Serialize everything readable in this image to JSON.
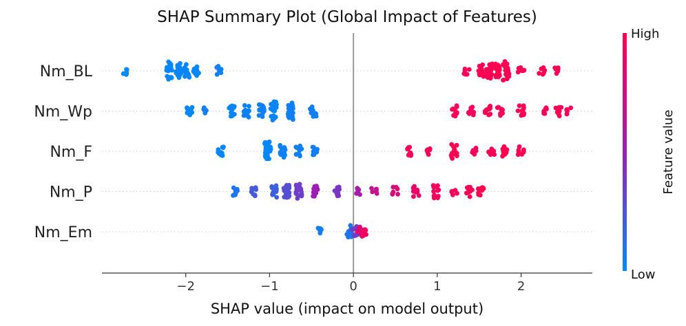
{
  "chart_data": {
    "type": "scatter",
    "title": "SHAP Summary Plot (Global Impact of Features)",
    "xlabel": "SHAP value (impact on model output)",
    "xlim": [
      -3.0,
      2.85
    ],
    "xticks": [
      -2,
      -1,
      0,
      1,
      2
    ],
    "xtick_labels": [
      "−2",
      "−1",
      "0",
      "1",
      "2"
    ],
    "features": [
      "Nm_BL",
      "Nm_Wp",
      "Nm_F",
      "Nm_P",
      "Nm_Em"
    ],
    "series": [
      {
        "name": "Nm_BL",
        "clusters": [
          {
            "x": -2.72,
            "n": 2,
            "fv": 0.0
          },
          {
            "x": -2.2,
            "n": 8,
            "fv": 0.02
          },
          {
            "x": -2.08,
            "n": 6,
            "fv": 0.03
          },
          {
            "x": -1.98,
            "n": 5,
            "fv": 0.03
          },
          {
            "x": -1.88,
            "n": 4,
            "fv": 0.02
          },
          {
            "x": -1.6,
            "n": 3,
            "fv": 0.05
          },
          {
            "x": 1.35,
            "n": 2,
            "fv": 0.97
          },
          {
            "x": 1.52,
            "n": 5,
            "fv": 1.0
          },
          {
            "x": 1.62,
            "n": 6,
            "fv": 0.98
          },
          {
            "x": 1.72,
            "n": 6,
            "fv": 1.0
          },
          {
            "x": 1.82,
            "n": 8,
            "fv": 0.99
          },
          {
            "x": 2.0,
            "n": 2,
            "fv": 0.98
          },
          {
            "x": 2.25,
            "n": 2,
            "fv": 1.0
          },
          {
            "x": 2.43,
            "n": 2,
            "fv": 0.97
          }
        ]
      },
      {
        "name": "Nm_Wp",
        "clusters": [
          {
            "x": -1.95,
            "n": 3,
            "fv": 0.02
          },
          {
            "x": -1.75,
            "n": 2,
            "fv": 0.05
          },
          {
            "x": -1.45,
            "n": 4,
            "fv": 0.03
          },
          {
            "x": -1.28,
            "n": 5,
            "fv": 0.04
          },
          {
            "x": -1.1,
            "n": 5,
            "fv": 0.05
          },
          {
            "x": -0.95,
            "n": 8,
            "fv": 0.03
          },
          {
            "x": -0.75,
            "n": 7,
            "fv": 0.05
          },
          {
            "x": -0.48,
            "n": 4,
            "fv": 0.06
          },
          {
            "x": 1.2,
            "n": 4,
            "fv": 0.97
          },
          {
            "x": 1.4,
            "n": 3,
            "fv": 0.95
          },
          {
            "x": 1.6,
            "n": 4,
            "fv": 0.99
          },
          {
            "x": 1.75,
            "n": 3,
            "fv": 0.97
          },
          {
            "x": 2.0,
            "n": 4,
            "fv": 1.0
          },
          {
            "x": 2.3,
            "n": 2,
            "fv": 0.98
          },
          {
            "x": 2.45,
            "n": 4,
            "fv": 1.0
          },
          {
            "x": 2.58,
            "n": 2,
            "fv": 0.98
          }
        ]
      },
      {
        "name": "Nm_F",
        "clusters": [
          {
            "x": -1.58,
            "n": 4,
            "fv": 0.03
          },
          {
            "x": -1.02,
            "n": 8,
            "fv": 0.02
          },
          {
            "x": -0.85,
            "n": 5,
            "fv": 0.04
          },
          {
            "x": -0.65,
            "n": 4,
            "fv": 0.05
          },
          {
            "x": -0.45,
            "n": 3,
            "fv": 0.06
          },
          {
            "x": 0.65,
            "n": 3,
            "fv": 0.96
          },
          {
            "x": 0.88,
            "n": 2,
            "fv": 0.98
          },
          {
            "x": 1.2,
            "n": 6,
            "fv": 1.0
          },
          {
            "x": 1.45,
            "n": 2,
            "fv": 0.97
          },
          {
            "x": 1.65,
            "n": 3,
            "fv": 0.98
          },
          {
            "x": 1.8,
            "n": 4,
            "fv": 1.0
          },
          {
            "x": 2.0,
            "n": 3,
            "fv": 0.99
          }
        ]
      },
      {
        "name": "Nm_P",
        "clusters": [
          {
            "x": -1.4,
            "n": 3,
            "fv": 0.1
          },
          {
            "x": -1.18,
            "n": 3,
            "fv": 0.22
          },
          {
            "x": -0.95,
            "n": 5,
            "fv": 0.2
          },
          {
            "x": -0.8,
            "n": 6,
            "fv": 0.28
          },
          {
            "x": -0.65,
            "n": 6,
            "fv": 0.35
          },
          {
            "x": -0.45,
            "n": 4,
            "fv": 0.5
          },
          {
            "x": -0.2,
            "n": 3,
            "fv": 0.4
          },
          {
            "x": 0.05,
            "n": 2,
            "fv": 0.55
          },
          {
            "x": 0.25,
            "n": 2,
            "fv": 0.7
          },
          {
            "x": 0.5,
            "n": 3,
            "fv": 0.8
          },
          {
            "x": 0.75,
            "n": 4,
            "fv": 0.9
          },
          {
            "x": 0.98,
            "n": 5,
            "fv": 0.95
          },
          {
            "x": 1.2,
            "n": 2,
            "fv": 0.97
          },
          {
            "x": 1.38,
            "n": 4,
            "fv": 0.98
          },
          {
            "x": 1.52,
            "n": 3,
            "fv": 1.0
          }
        ]
      },
      {
        "name": "Nm_Em",
        "clusters": [
          {
            "x": -0.42,
            "n": 2,
            "fv": 0.05
          },
          {
            "x": -0.05,
            "n": 5,
            "fv": 0.1
          },
          {
            "x": 0.02,
            "n": 4,
            "fv": 0.35
          },
          {
            "x": 0.08,
            "n": 4,
            "fv": 0.85
          },
          {
            "x": 0.13,
            "n": 3,
            "fv": 0.95
          }
        ]
      }
    ],
    "colorbar": {
      "label": "Feature value",
      "high_label": "High",
      "low_label": "Low",
      "low_color": "#008bfb",
      "mid_color": "#9b1fb4",
      "high_color": "#ff0052"
    },
    "zero_line_color": "#999999"
  }
}
